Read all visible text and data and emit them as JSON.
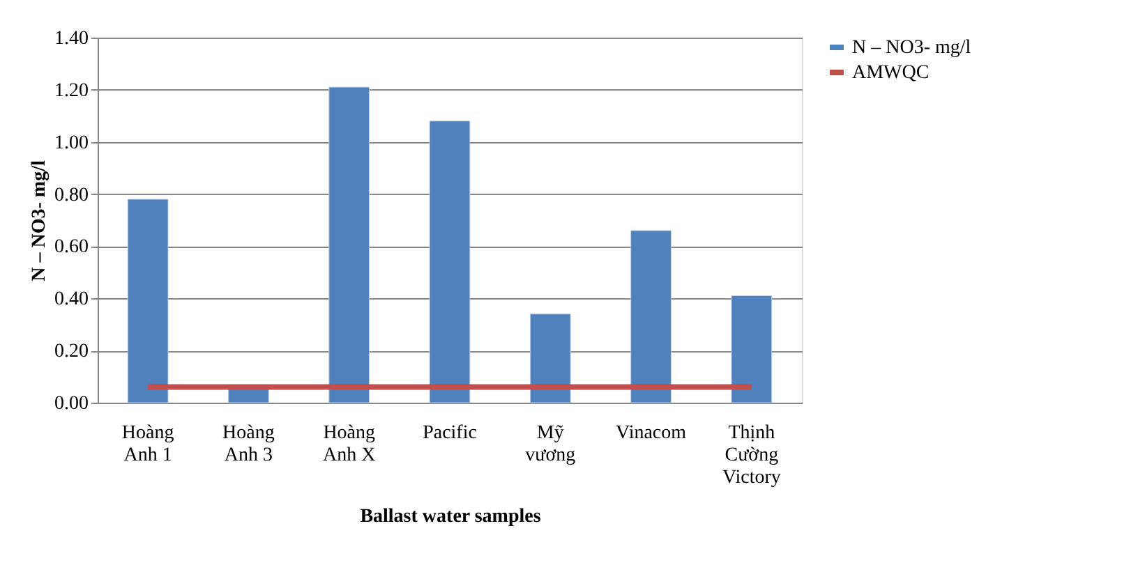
{
  "chart_data": {
    "type": "bar",
    "xlabel": "Ballast water samples",
    "ylabel": "N – NO3- mg/l",
    "categories": [
      "Hoàng\nAnh 1",
      "Hoàng\nAnh 3",
      "Hoàng\nAnh X",
      "Pacific",
      "Mỹ\nvương",
      "Vinacom",
      "Thịnh\nCường\nVictory"
    ],
    "series": [
      {
        "name": "N – NO3- mg/l",
        "color": "#4f81bd",
        "values": [
          0.78,
          0.06,
          1.21,
          1.08,
          0.34,
          0.66,
          0.41
        ]
      },
      {
        "name": "AMWQC",
        "type": "line",
        "color": "#c0504d",
        "values": [
          0.06,
          0.06,
          0.06,
          0.06,
          0.06,
          0.06,
          0.06
        ]
      }
    ],
    "ylim": [
      0,
      1.4
    ],
    "yticks": [
      {
        "value": 0,
        "label": "0.00"
      },
      {
        "value": 0.2,
        "label": "0.20"
      },
      {
        "value": 0.4,
        "label": "0.40"
      },
      {
        "value": 0.6,
        "label": "0.60"
      },
      {
        "value": 0.8,
        "label": "0.80"
      },
      {
        "value": 1.0,
        "label": "1.00"
      },
      {
        "value": 1.2,
        "label": "1.20"
      },
      {
        "value": 1.4,
        "label": "1.40"
      }
    ],
    "grid": "y",
    "legend": "right"
  }
}
